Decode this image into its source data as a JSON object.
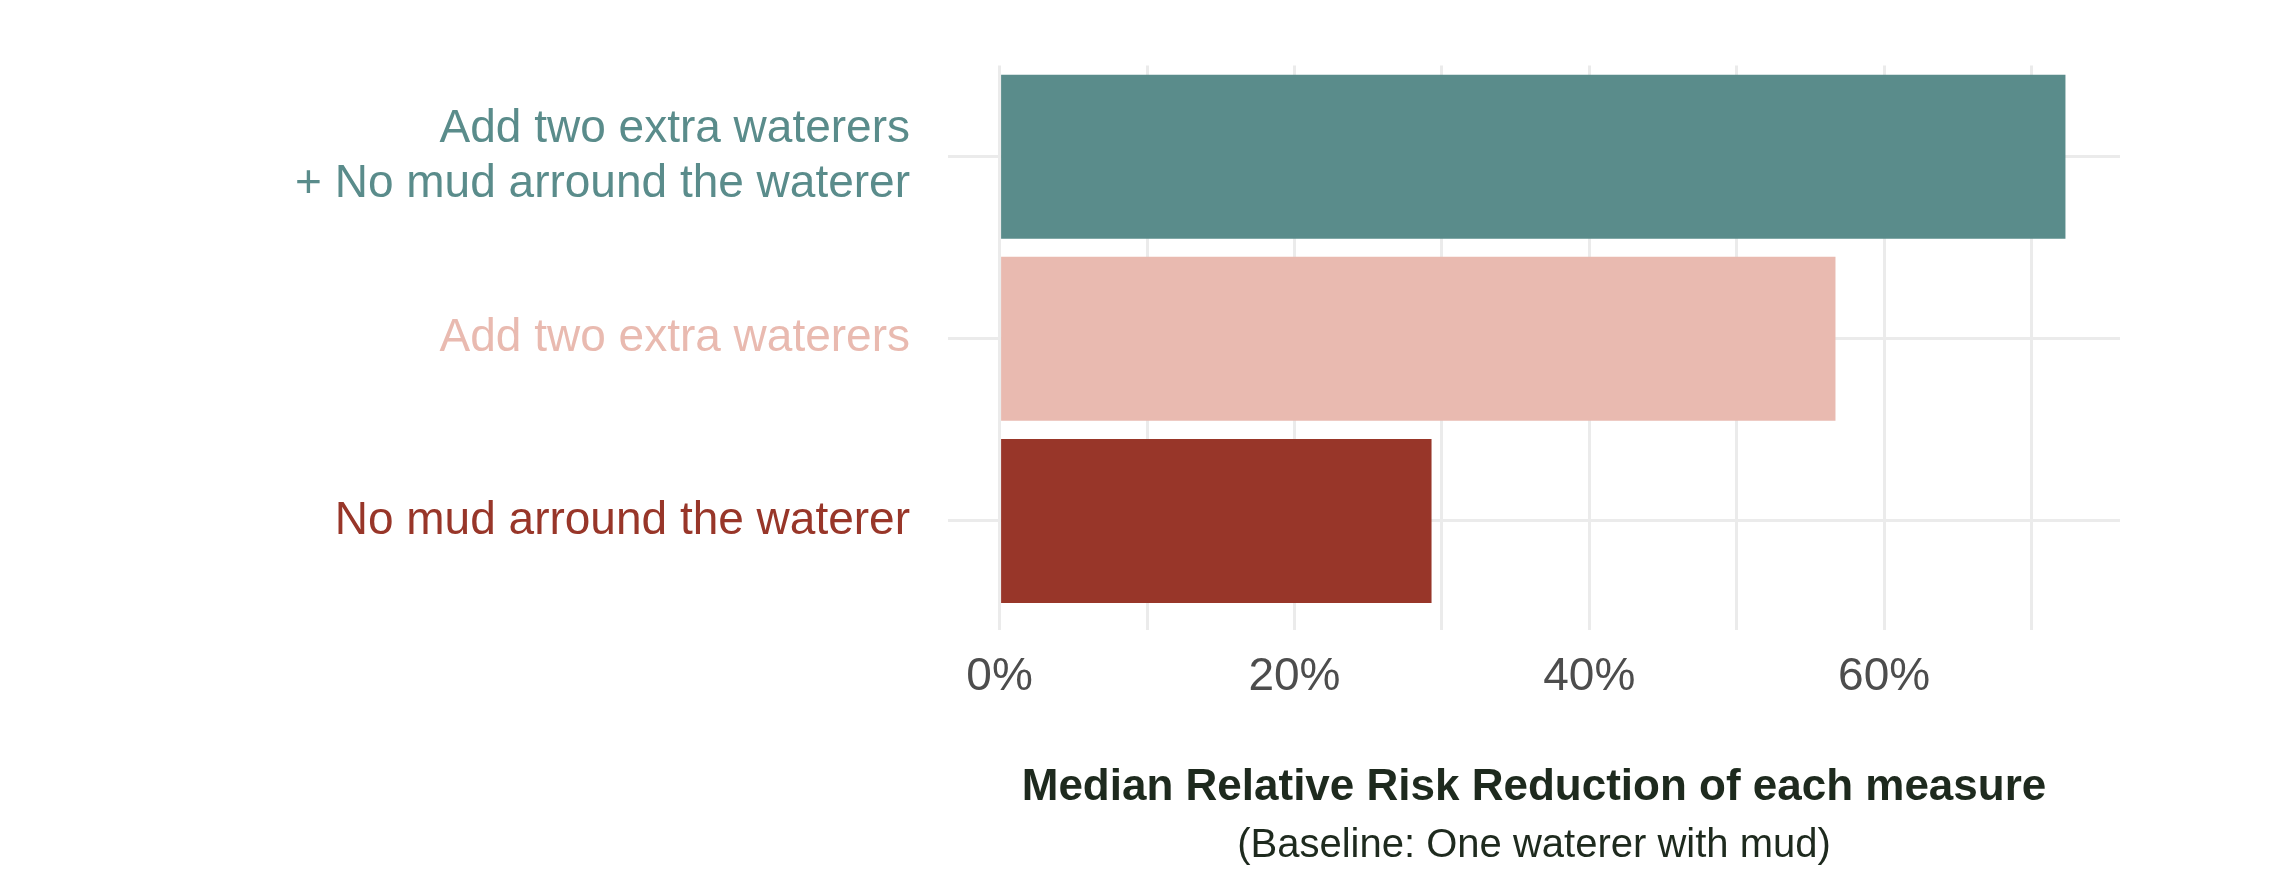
{
  "chart_data": {
    "type": "bar",
    "orientation": "horizontal",
    "categories": [
      "Add two extra waterers\n+ No mud arround the waterer",
      "Add two extra waterers",
      "No mud arround the waterer"
    ],
    "values": [
      72.3,
      56.7,
      29.3
    ],
    "colors": [
      "#5a8c8b",
      "#e9bab0",
      "#983629"
    ],
    "xlim": [
      -3.5,
      76
    ],
    "xticks": [
      {
        "value": 0,
        "label": "0%"
      },
      {
        "value": 10,
        "label": null
      },
      {
        "value": 20,
        "label": "20%"
      },
      {
        "value": 30,
        "label": null
      },
      {
        "value": 40,
        "label": "40%"
      },
      {
        "value": 50,
        "label": null
      },
      {
        "value": 60,
        "label": "60%"
      },
      {
        "value": 70,
        "label": null
      }
    ],
    "xlabel": "Median Relative Risk Reduction of each measure",
    "annotations": [
      "(Baseline: One waterer with mud)"
    ],
    "grid": true,
    "legend": false
  }
}
